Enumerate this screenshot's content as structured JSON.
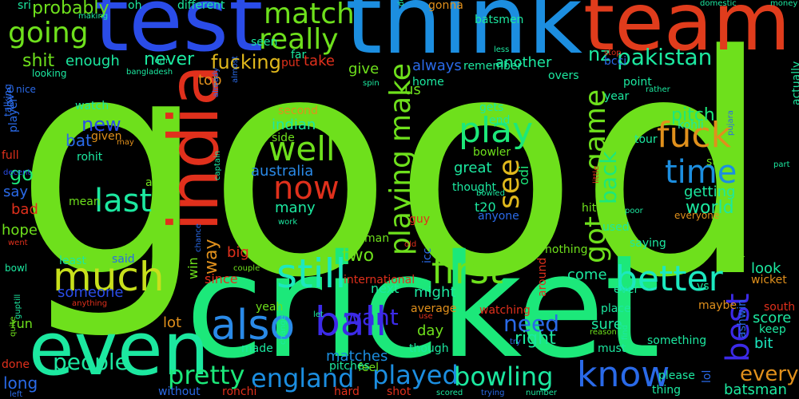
{
  "words": [
    {
      "t": "good",
      "c": "#6ee01c"
    },
    {
      "t": "cricket",
      "c": "#1ce87a"
    },
    {
      "t": "think",
      "c": "#1c8ee0"
    },
    {
      "t": "test",
      "c": "#2a4ce8"
    },
    {
      "t": "team",
      "c": "#e03c1c"
    },
    {
      "t": "india",
      "c": "#e0301c"
    },
    {
      "t": "even",
      "c": "#1ce8a0"
    },
    {
      "t": "also",
      "c": "#2a8ae8"
    },
    {
      "t": "still",
      "c": "#1ce8c0"
    },
    {
      "t": "much",
      "c": "#c8e01c"
    },
    {
      "t": "ball",
      "c": "#3c2ae8"
    },
    {
      "t": "first",
      "c": "#6ee01c"
    },
    {
      "t": "better",
      "c": "#1ce8c0"
    },
    {
      "t": "know",
      "c": "#2a6ae8"
    },
    {
      "t": "play",
      "c": "#1ce87a"
    },
    {
      "t": "playing",
      "c": "#6ee01c"
    },
    {
      "t": "make",
      "c": "#6ee01c"
    },
    {
      "t": "got",
      "c": "#6ee01c"
    },
    {
      "t": "game",
      "c": "#6ee01c"
    },
    {
      "t": "fuck",
      "c": "#e0901c"
    },
    {
      "t": "time",
      "c": "#1c8ee0"
    },
    {
      "t": "well",
      "c": "#6ee01c"
    },
    {
      "t": "now",
      "c": "#e0301c"
    },
    {
      "t": "last",
      "c": "#1ce8a0"
    },
    {
      "t": "see",
      "c": "#e0b81c"
    },
    {
      "t": "back",
      "c": "#1ce87a"
    },
    {
      "t": "going",
      "c": "#6ee01c"
    },
    {
      "t": "really",
      "c": "#6ee01c"
    },
    {
      "t": "match",
      "c": "#6ee01c"
    },
    {
      "t": "england",
      "c": "#1c8ee0"
    },
    {
      "t": "played",
      "c": "#1c8ee0"
    },
    {
      "t": "bowling",
      "c": "#1ce8a0"
    },
    {
      "t": "pretty",
      "c": "#1ce87a"
    },
    {
      "t": "people",
      "c": "#1ce8a0"
    },
    {
      "t": "best",
      "c": "#3c2ae8"
    },
    {
      "t": "batting",
      "c": "#6ee01c"
    },
    {
      "t": "pakistan",
      "c": "#1ce8a0"
    },
    {
      "t": "need",
      "c": "#2a6ae8"
    },
    {
      "t": "want",
      "c": "#3c2ae8"
    },
    {
      "t": "every",
      "c": "#e0901c"
    },
    {
      "t": "fucking",
      "c": "#e0b81c"
    },
    {
      "t": "never",
      "c": "#1ce8a0"
    },
    {
      "t": "new",
      "c": "#2a4ce8"
    },
    {
      "t": "shit",
      "c": "#6ee01c"
    },
    {
      "t": "nz",
      "c": "#1ce8a0"
    },
    {
      "t": "probably",
      "c": "#6ee01c"
    },
    {
      "t": "right",
      "c": "#1ce8a0"
    },
    {
      "t": "two",
      "c": "#6ee01c"
    },
    {
      "t": "way",
      "c": "#e0901c"
    },
    {
      "t": "go",
      "c": "#1ce87a"
    },
    {
      "t": "world",
      "c": "#1ce8a0"
    },
    {
      "t": "pitch",
      "c": "#1ce87a"
    },
    {
      "t": "australia",
      "c": "#2a8ae8"
    },
    {
      "t": "indian",
      "c": "#1ce8a0"
    },
    {
      "t": "score",
      "c": "#1ce8a0"
    },
    {
      "t": "day",
      "c": "#6ee01c"
    },
    {
      "t": "look",
      "c": "#1ce8a0"
    },
    {
      "t": "bit",
      "c": "#1ce8c0"
    },
    {
      "t": "lot",
      "c": "#e0901c"
    },
    {
      "t": "many",
      "c": "#1ce8a0"
    },
    {
      "t": "great",
      "c": "#1ce8a0"
    },
    {
      "t": "getting",
      "c": "#1ce8a0"
    },
    {
      "t": "come",
      "c": "#1ce8a0"
    },
    {
      "t": "might",
      "c": "#1ce8a0"
    },
    {
      "t": "sure",
      "c": "#1ce8a0"
    },
    {
      "t": "matches",
      "c": "#1c8ee0"
    },
    {
      "t": "batsman",
      "c": "#1ce8a0"
    },
    {
      "t": "someone",
      "c": "#2a4ce8"
    },
    {
      "t": "odi",
      "c": "#1ce87a"
    },
    {
      "t": "t20",
      "c": "#1ce8a0"
    },
    {
      "t": "take",
      "c": "#e0301c"
    },
    {
      "t": "enough",
      "c": "#1ce8a0"
    },
    {
      "t": "always",
      "c": "#2a6ae8"
    },
    {
      "t": "another",
      "c": "#1ce8a0"
    },
    {
      "t": "give",
      "c": "#6ee01c"
    },
    {
      "t": "top",
      "c": "#e0901c"
    },
    {
      "t": "big",
      "c": "#e0301c"
    },
    {
      "t": "hope",
      "c": "#6ee01c"
    },
    {
      "t": "bad",
      "c": "#e0301c"
    },
    {
      "t": "say",
      "c": "#2a6ae8"
    },
    {
      "t": "long",
      "c": "#2a6ae8"
    },
    {
      "t": "done",
      "c": "#e0301c"
    },
    {
      "t": "run",
      "c": "#6ee01c"
    },
    {
      "t": "bat",
      "c": "#2a6ae8"
    },
    {
      "t": "next",
      "c": "#1ce8a0"
    },
    {
      "t": "since",
      "c": "#e0301c"
    },
    {
      "t": "win",
      "c": "#6ee01c"
    },
    {
      "t": "us",
      "c": "#6ee01c"
    },
    {
      "t": "kohli",
      "c": "#1ce8a0"
    },
    {
      "t": "bcci",
      "c": "#2a6ae8"
    },
    {
      "t": "wicket",
      "c": "#e0901c"
    },
    {
      "t": "international",
      "c": "#e0301c"
    },
    {
      "t": "actually",
      "c": "#1ce8a0"
    },
    {
      "t": "player",
      "c": "#2a6ae8"
    },
    {
      "t": "love",
      "c": "#2a6ae8"
    },
    {
      "t": "full",
      "c": "#e0301c"
    },
    {
      "t": "mean",
      "c": "#6ee01c"
    },
    {
      "t": "least",
      "c": "#1ce8a0"
    },
    {
      "t": "said",
      "c": "#2a6ae8"
    },
    {
      "t": "rohit",
      "c": "#1ce8a0"
    },
    {
      "t": "given",
      "c": "#e0901c"
    },
    {
      "t": "watch",
      "c": "#1ce8a0"
    },
    {
      "t": "seen",
      "c": "#1ce8a0"
    },
    {
      "t": "far",
      "c": "#1ce8a0"
    },
    {
      "t": "put",
      "c": "#e0301c"
    },
    {
      "t": "oh",
      "c": "#1ce8a0"
    },
    {
      "t": "different",
      "c": "#1ce8a0"
    },
    {
      "t": "batsmen",
      "c": "#1ce8a0"
    },
    {
      "t": "gonna",
      "c": "#e0901c"
    },
    {
      "t": "home",
      "c": "#1ce8a0"
    },
    {
      "t": "remember",
      "c": "#1ce8a0"
    },
    {
      "t": "overs",
      "c": "#1ce8a0"
    },
    {
      "t": "point",
      "c": "#1ce8a0"
    },
    {
      "t": "year",
      "c": "#1ce8a0"
    },
    {
      "t": "tour",
      "c": "#1ce8a0"
    },
    {
      "t": "start",
      "c": "#6ee01c"
    },
    {
      "t": "gets",
      "c": "#1ce8a0"
    },
    {
      "t": "end",
      "c": "#1ce8a0"
    },
    {
      "t": "bowler",
      "c": "#6ee01c"
    },
    {
      "t": "thought",
      "c": "#1ce8a0"
    },
    {
      "t": "anyone",
      "c": "#2a6ae8"
    },
    {
      "t": "hit",
      "c": "#6ee01c"
    },
    {
      "t": "used",
      "c": "#1ce8a0"
    },
    {
      "t": "side",
      "c": "#6ee01c"
    },
    {
      "t": "second",
      "c": "#e0901c"
    },
    {
      "t": "away",
      "c": "#6ee01c"
    },
    {
      "t": "made",
      "c": "#1ce8a0"
    },
    {
      "t": "yeah",
      "c": "#6ee01c"
    },
    {
      "t": "average",
      "c": "#e0901c"
    },
    {
      "t": "watching",
      "c": "#e0301c"
    },
    {
      "t": "place",
      "c": "#1ce8a0"
    },
    {
      "t": "something",
      "c": "#1ce8a0"
    },
    {
      "t": "maybe",
      "c": "#e0901c"
    },
    {
      "t": "please",
      "c": "#1ce8a0"
    },
    {
      "t": "thing",
      "c": "#1ce8a0"
    },
    {
      "t": "everyone",
      "c": "#e0901c"
    },
    {
      "t": "keep",
      "c": "#1ce8a0"
    },
    {
      "t": "south",
      "c": "#e0301c"
    },
    {
      "t": "though",
      "c": "#1ce8a0"
    },
    {
      "t": "feel",
      "c": "#6ee01c"
    },
    {
      "t": "hard",
      "c": "#e0301c"
    },
    {
      "t": "shot",
      "c": "#e0301c"
    },
    {
      "t": "without",
      "c": "#2a6ae8"
    },
    {
      "t": "ronchi",
      "c": "#e0301c"
    },
    {
      "t": "pitches",
      "c": "#1ce8a0"
    },
    {
      "t": "nothing",
      "c": "#6ee01c"
    },
    {
      "t": "saying",
      "c": "#1ce8a0"
    },
    {
      "t": "guy",
      "c": "#e0301c"
    },
    {
      "t": "man",
      "c": "#6ee01c"
    },
    {
      "t": "icc",
      "c": "#2a6ae8"
    },
    {
      "t": "around",
      "c": "#e0301c"
    },
    {
      "t": "fair",
      "c": "#6ee01c"
    },
    {
      "t": "ever",
      "c": "#1ce8a0"
    },
    {
      "t": "must",
      "c": "#1ce8a0"
    },
    {
      "t": "vs",
      "c": "#1ce8a0"
    },
    {
      "t": "ashwin",
      "c": "#2a6ae8"
    },
    {
      "t": "lol",
      "c": "#2a6ae8"
    },
    {
      "t": "sri",
      "c": "#1ce8a0"
    },
    {
      "t": "looking",
      "c": "#1ce8a0"
    },
    {
      "t": "nice",
      "c": "#2a6ae8"
    },
    {
      "t": "talking",
      "c": "#2a6ae8"
    },
    {
      "t": "decent",
      "c": "#2a4ce8"
    },
    {
      "t": "went",
      "c": "#e0301c"
    },
    {
      "t": "bowl",
      "c": "#1ce8a0"
    },
    {
      "t": "guptill",
      "c": "#1ce8a0"
    },
    {
      "t": "quite",
      "c": "#6ee01c"
    },
    {
      "t": "left",
      "c": "#2a6ae8"
    },
    {
      "t": "making",
      "c": "#1ce8a0"
    },
    {
      "t": "form",
      "c": "#1ce8a0"
    },
    {
      "t": "bangladesh",
      "c": "#1ce8a0"
    },
    {
      "t": "almost",
      "c": "#2a6ae8"
    },
    {
      "t": "already",
      "c": "#2a6ae8"
    },
    {
      "t": "captain",
      "c": "#1ce8a0"
    },
    {
      "t": "chance",
      "c": "#2a6ae8"
    },
    {
      "t": "couple",
      "c": "#6ee01c"
    },
    {
      "t": "anything",
      "c": "#e0301c"
    },
    {
      "t": "may",
      "c": "#e0901c"
    },
    {
      "t": "work",
      "c": "#1ce8a0"
    },
    {
      "t": "spin",
      "c": "#1ce8a0"
    },
    {
      "t": "definitely",
      "c": "#1ce8a0"
    },
    {
      "t": "let",
      "c": "#1ce8a0"
    },
    {
      "t": "use",
      "c": "#e0301c"
    },
    {
      "t": "old",
      "c": "#e0301c"
    },
    {
      "t": "change",
      "c": "#1ce8a0"
    },
    {
      "t": "less",
      "c": "#1ce8a0"
    },
    {
      "t": "stop",
      "c": "#e0301c"
    },
    {
      "t": "rather",
      "c": "#1ce8a0"
    },
    {
      "t": "domestic",
      "c": "#1ce8a0"
    },
    {
      "t": "money",
      "c": "#1ce8a0"
    },
    {
      "t": "pujara",
      "c": "#2a6ae8"
    },
    {
      "t": "little",
      "c": "#e0301c"
    },
    {
      "t": "poor",
      "c": "#1ce8a0"
    },
    {
      "t": "bowled",
      "c": "#1ce8a0"
    },
    {
      "t": "reason",
      "c": "#6ee01c"
    },
    {
      "t": "find",
      "c": "#1ce8a0"
    },
    {
      "t": "try",
      "c": "#2a6ae8"
    },
    {
      "t": "number",
      "c": "#1ce8a0"
    },
    {
      "t": "trying",
      "c": "#2a6ae8"
    },
    {
      "t": "scored",
      "c": "#1ce8a0"
    },
    {
      "t": "part",
      "c": "#1ce8a0"
    }
  ]
}
